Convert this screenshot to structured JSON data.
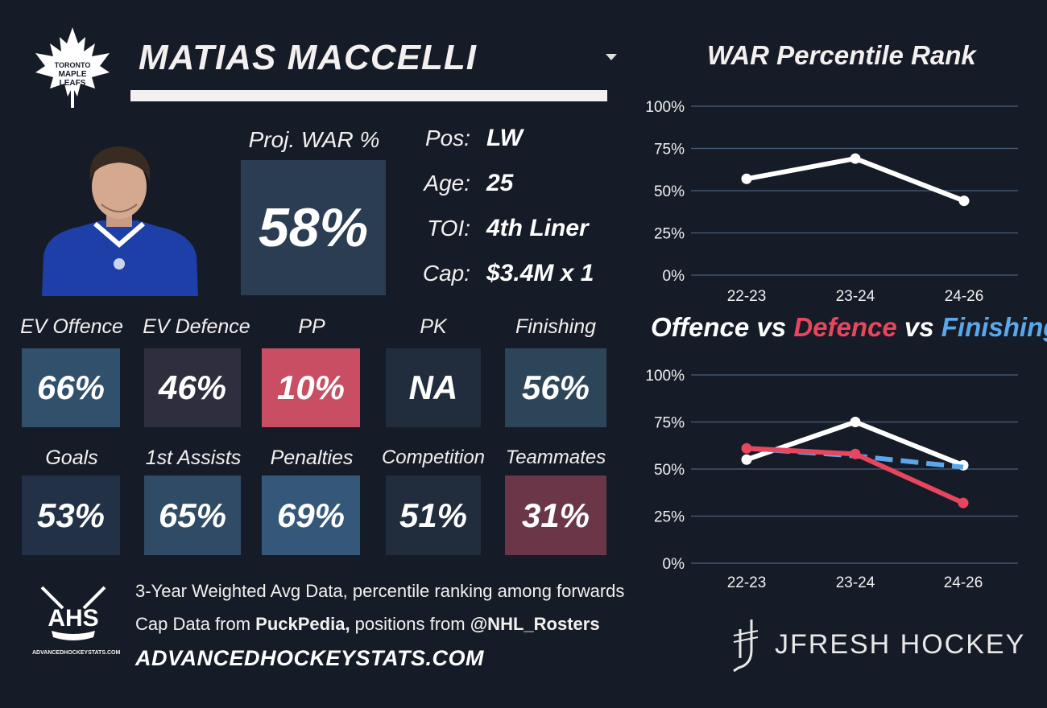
{
  "header": {
    "player_name": "MATIAS MACCELLI",
    "team_logo": "maple-leaf-icon",
    "team_logo_text": [
      "TORONTO",
      "MAPLE",
      "LEAFS"
    ]
  },
  "projection": {
    "label": "Proj. WAR %",
    "value": "58%"
  },
  "info": [
    {
      "label": "Pos:",
      "value": "LW"
    },
    {
      "label": "Age:",
      "value": "25"
    },
    {
      "label": "TOI:",
      "value": "4th Liner"
    },
    {
      "label": "Cap:",
      "value": "$3.4M x 1"
    }
  ],
  "metrics_row1": [
    {
      "label": "EV Offence",
      "value": "66%",
      "color": "#31506b"
    },
    {
      "label": "EV Defence",
      "value": "46%",
      "color": "#2f2e3e"
    },
    {
      "label": "PP",
      "value": "10%",
      "color": "#c94e63"
    },
    {
      "label": "PK",
      "value": "NA",
      "color": "#212c3c"
    },
    {
      "label": "Finishing",
      "value": "56%",
      "color": "#2d4559"
    }
  ],
  "metrics_row2": [
    {
      "label": "Goals",
      "value": "53%",
      "color": "#223146"
    },
    {
      "label": "1st Assists",
      "value": "65%",
      "color": "#2f4b66"
    },
    {
      "label": "Penalties",
      "value": "69%",
      "color": "#34577a"
    },
    {
      "label": "Competition",
      "value": "51%",
      "color": "#212c3c"
    },
    {
      "label": "Teammates",
      "value": "31%",
      "color": "#6a3648"
    }
  ],
  "footer": {
    "line1": "3-Year Weighted Avg Data, percentile ranking among forwards",
    "line2_prefix": "Cap Data from ",
    "line2_source": "PuckPedia,",
    "line2_mid": " positions from ",
    "line2_handle": "@NHL_Rosters",
    "url": "ADVANCEDHOCKEYSTATS.COM",
    "ahs_logo_text": "AHS",
    "ahs_small_text": "ADVANCEDHOCKEYSTATS.COM",
    "brand": "JFRESH HOCKEY"
  },
  "colors": {
    "background": "#161c27",
    "offence": "#ffffff",
    "defence": "#e8465e",
    "finishing": "#5aa8ea",
    "grid": "#4a5f7a"
  },
  "chart_data": [
    {
      "type": "line",
      "title": "WAR Percentile Rank",
      "categories": [
        "22-23",
        "23-24",
        "24-26"
      ],
      "series": [
        {
          "values": [
            57,
            69,
            44
          ]
        }
      ],
      "ylim": [
        0,
        100
      ],
      "yticks": [
        "0%",
        "25%",
        "50%",
        "75%",
        "100%"
      ],
      "grid": true
    },
    {
      "type": "line",
      "title_parts": [
        "Offence",
        " vs ",
        "Defence",
        " vs ",
        "Finishing"
      ],
      "categories": [
        "22-23",
        "23-24",
        "24-26"
      ],
      "series": [
        {
          "name": "Offence",
          "values": [
            55,
            75,
            52
          ]
        },
        {
          "name": "Finishing",
          "values": [
            61,
            57,
            51
          ],
          "style": "dashed"
        },
        {
          "name": "Defence",
          "values": [
            61,
            58,
            32
          ]
        }
      ],
      "ylim": [
        0,
        100
      ],
      "yticks": [
        "0%",
        "25%",
        "50%",
        "75%",
        "100%"
      ],
      "grid": true
    }
  ]
}
